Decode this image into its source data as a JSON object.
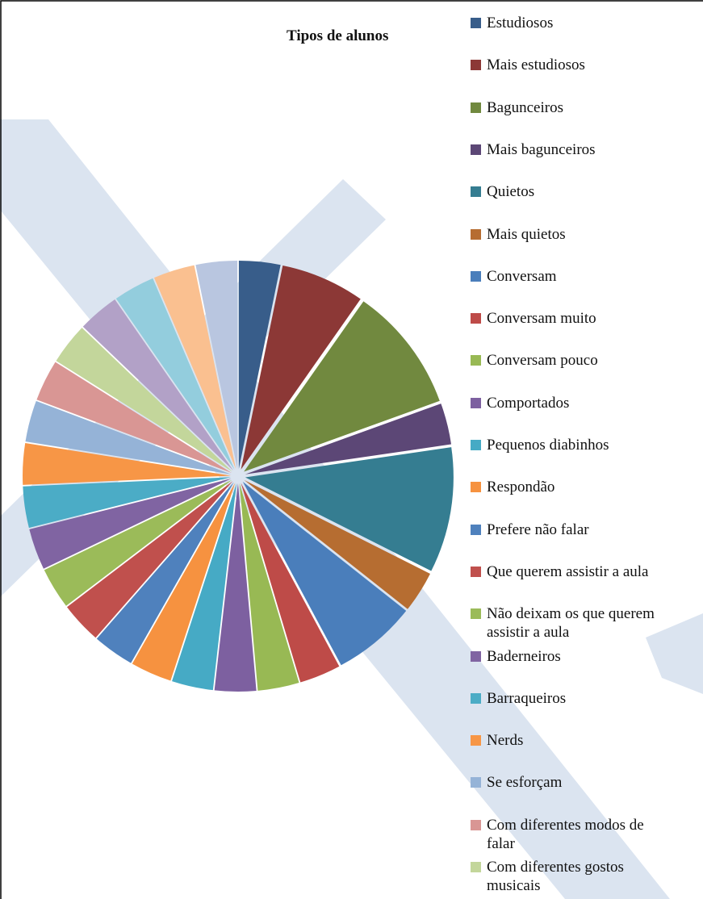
{
  "chart_data": {
    "type": "pie",
    "title": "Tipos de alunos",
    "categories": [
      "Estudiosos",
      "Mais estudiosos",
      "Bagunceiros",
      "Mais bagunceiros",
      "Quietos",
      "Mais quietos",
      "Conversam",
      "Conversam muito",
      "Conversam pouco",
      "Comportados",
      "Pequenos diabinhos",
      "Respondão",
      "Prefere não falar",
      "Que querem assistir a aula",
      "Não deixam os que querem assistir a aula",
      "Baderneiros",
      "Barraqueiros",
      "Nerds",
      "Se esforçam",
      "Com diferentes modos de falar",
      "Com diferentes gostos musicais",
      null,
      null,
      null,
      null
    ],
    "values": [
      3.2,
      6.5,
      9.7,
      3.2,
      9.7,
      3.2,
      6.5,
      3.2,
      3.2,
      3.2,
      3.2,
      3.2,
      3.2,
      3.2,
      3.2,
      3.2,
      3.2,
      3.2,
      3.2,
      3.2,
      3.2,
      3.2,
      3.2,
      3.2,
      3.2
    ],
    "colors": [
      "#385d8a",
      "#8c3836",
      "#71893f",
      "#5c4776",
      "#357d91",
      "#b66d31",
      "#4a7ebb",
      "#be4b48",
      "#98b954",
      "#7d60a0",
      "#46aac5",
      "#f69240",
      "#4f81bd",
      "#c0504d",
      "#9bbb59",
      "#8064a2",
      "#4bacc6",
      "#f79646",
      "#95b3d7",
      "#d99694",
      "#c3d69b",
      "#b2a1c7",
      "#93cddd",
      "#fac090",
      "#b9c6e0"
    ]
  }
}
